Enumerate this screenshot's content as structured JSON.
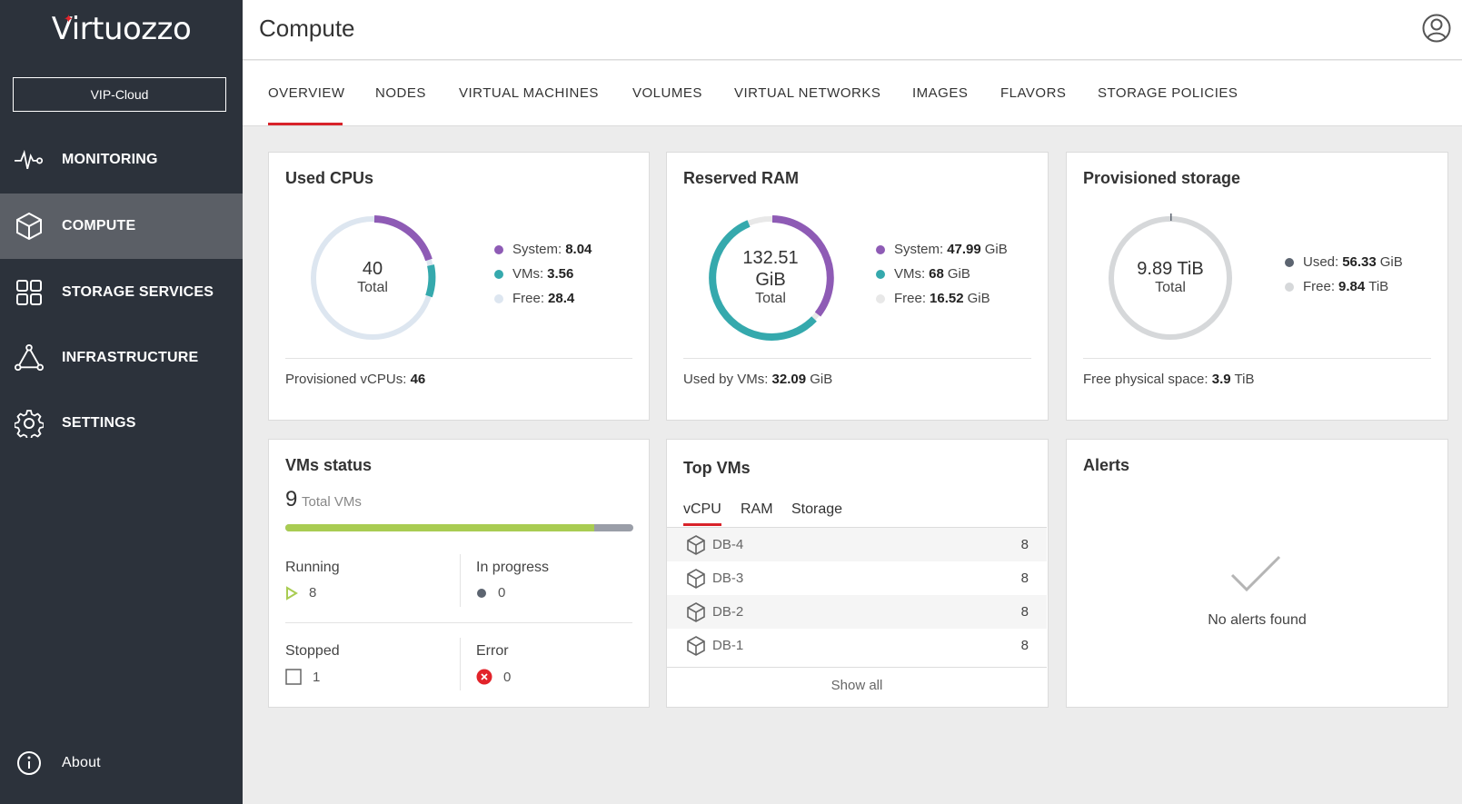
{
  "sidebar": {
    "logo": "Virtuozzo",
    "cloud_button": "VIP-Cloud",
    "items": [
      {
        "label": "MONITORING",
        "icon": "pulse-icon"
      },
      {
        "label": "COMPUTE",
        "icon": "cube-icon"
      },
      {
        "label": "STORAGE SERVICES",
        "icon": "grid-icon"
      },
      {
        "label": "INFRASTRUCTURE",
        "icon": "triangle-nodes-icon"
      },
      {
        "label": "SETTINGS",
        "icon": "gear-icon"
      }
    ],
    "about": "About"
  },
  "header": {
    "title": "Compute"
  },
  "tabs": [
    "OVERVIEW",
    "NODES",
    "VIRTUAL MACHINES",
    "VOLUMES",
    "VIRTUAL NETWORKS",
    "IMAGES",
    "FLAVORS",
    "STORAGE POLICIES"
  ],
  "cards": {
    "cpu": {
      "title": "Used CPUs",
      "total_value": "40",
      "total_label": "Total",
      "legend": [
        {
          "label": "System:",
          "value": "8.04",
          "unit": "",
          "color": "#8e5bb5"
        },
        {
          "label": "VMs:",
          "value": "3.56",
          "unit": "",
          "color": "#35a9ad"
        },
        {
          "label": "Free:",
          "value": "28.4",
          "unit": "",
          "color": "#dde6f0"
        }
      ],
      "footer_label": "Provisioned vCPUs:",
      "footer_value": "46"
    },
    "ram": {
      "title": "Reserved RAM",
      "total_value": "132.51",
      "total_unit": "GiB",
      "total_label": "Total",
      "legend": [
        {
          "label": "System:",
          "value": "47.99",
          "unit": "GiB",
          "color": "#8e5bb5"
        },
        {
          "label": "VMs:",
          "value": "68",
          "unit": "GiB",
          "color": "#35a9ad"
        },
        {
          "label": "Free:",
          "value": "16.52",
          "unit": "GiB",
          "color": "#e8e8e8"
        }
      ],
      "footer_label": "Used by VMs:",
      "footer_value": "32.09",
      "footer_unit": "GiB"
    },
    "storage": {
      "title": "Provisioned storage",
      "total_value": "9.89 TiB",
      "total_label": "Total",
      "legend": [
        {
          "label": "Used:",
          "value": "56.33",
          "unit": "GiB",
          "color": "#5c6470"
        },
        {
          "label": "Free:",
          "value": "9.84",
          "unit": "TiB",
          "color": "#d6d8da"
        }
      ],
      "footer_label": "Free physical space:",
      "footer_value": "3.9",
      "footer_unit": "TiB"
    }
  },
  "vms_status": {
    "title": "VMs status",
    "total": "9",
    "total_label": "Total VMs",
    "running_fraction": 0.889,
    "running_label": "Running",
    "running": "8",
    "in_progress_label": "In progress",
    "in_progress": "0",
    "stopped_label": "Stopped",
    "stopped": "1",
    "error_label": "Error",
    "error": "0"
  },
  "top_vms": {
    "title": "Top VMs",
    "subtabs": [
      "vCPU",
      "RAM",
      "Storage"
    ],
    "rows": [
      {
        "name": "DB-4",
        "value": "8"
      },
      {
        "name": "DB-3",
        "value": "8"
      },
      {
        "name": "DB-2",
        "value": "8"
      },
      {
        "name": "DB-1",
        "value": "8"
      }
    ],
    "show_all": "Show all"
  },
  "alerts": {
    "title": "Alerts",
    "empty_text": "No alerts found"
  },
  "colors": {
    "accent": "#d8232a",
    "sidebar": "#2c323b",
    "purple": "#8e5bb5",
    "teal": "#35a9ad",
    "green": "#a9cc52"
  }
}
